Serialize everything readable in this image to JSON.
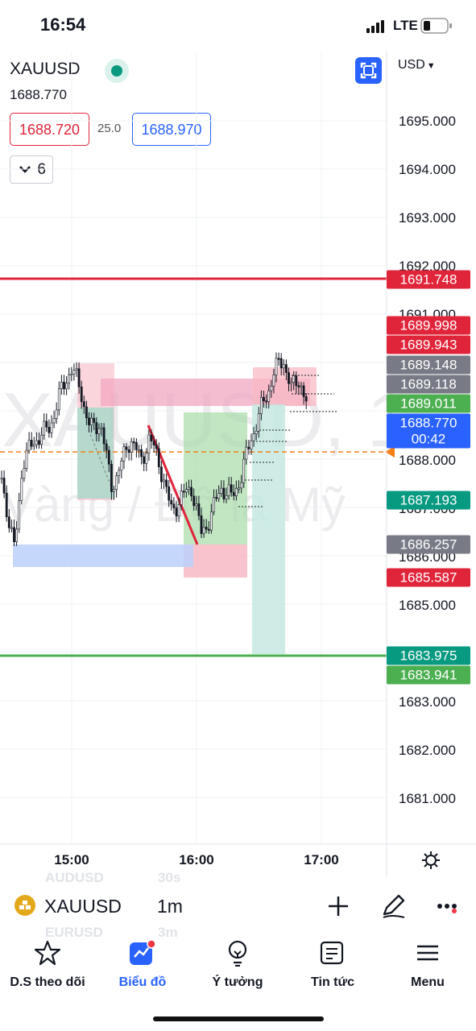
{
  "status_bar": {
    "time": "16:54",
    "network": "LTE",
    "battery_level": 0.25
  },
  "header": {
    "symbol": "XAUUSD",
    "last_price": "1688.770",
    "bid": "1688.720",
    "spread": "25.0",
    "ask": "1688.970",
    "indicator_count": "6",
    "currency": "USD"
  },
  "watermark": {
    "line1": "XAUUSD, 1",
    "line2": "Vàng / Đô la Mỹ"
  },
  "price_axis": {
    "ticks": [
      "1695.000",
      "1694.000",
      "1693.000",
      "1692.000",
      "1691.000",
      "1688.000",
      "1687.000",
      "1686.000",
      "1685.000",
      "1683.000",
      "1682.000",
      "1681.000"
    ],
    "labels": [
      {
        "text": "1691.748",
        "color": "#e0243a"
      },
      {
        "text": "1689.998",
        "color": "#e0243a"
      },
      {
        "text": "1689.943",
        "color": "#e0243a"
      },
      {
        "text": "1689.148",
        "color": "#787b86"
      },
      {
        "text": "1689.118",
        "color": "#787b86"
      },
      {
        "text": "1689.011",
        "color": "#4caf50"
      },
      {
        "text": "1688.770",
        "color": "#2962ff"
      },
      {
        "text": "00:42",
        "color": "#2962ff"
      },
      {
        "text": "1687.193",
        "color": "#089981"
      },
      {
        "text": "1686.257",
        "color": "#787b86"
      },
      {
        "text": "1685.587",
        "color": "#e0243a"
      },
      {
        "text": "1683.975",
        "color": "#089981"
      },
      {
        "text": "1683.941",
        "color": "#4caf50"
      }
    ]
  },
  "time_axis": {
    "labels": [
      "15:00",
      "16:00",
      "17:00"
    ]
  },
  "symbol_bar": {
    "symbol": "XAUUSD",
    "interval": "1m",
    "ghost_above": [
      "AUDUSD",
      "30s"
    ],
    "ghost_below": [
      "EURUSD",
      "3m"
    ]
  },
  "bottom_nav": {
    "items": [
      {
        "label": "D.S theo dõi",
        "icon": "star-icon"
      },
      {
        "label": "Biểu đồ",
        "icon": "chart-icon"
      },
      {
        "label": "Ý tưởng",
        "icon": "lightbulb-icon"
      },
      {
        "label": "Tin tức",
        "icon": "news-icon"
      },
      {
        "label": "Menu",
        "icon": "hamburger-icon"
      }
    ],
    "active_index": 1
  },
  "colors": {
    "accent": "#2962ff",
    "bearish": "#e0243a",
    "bullish": "#4caf50",
    "teal": "#089981",
    "gray": "#787b86"
  }
}
